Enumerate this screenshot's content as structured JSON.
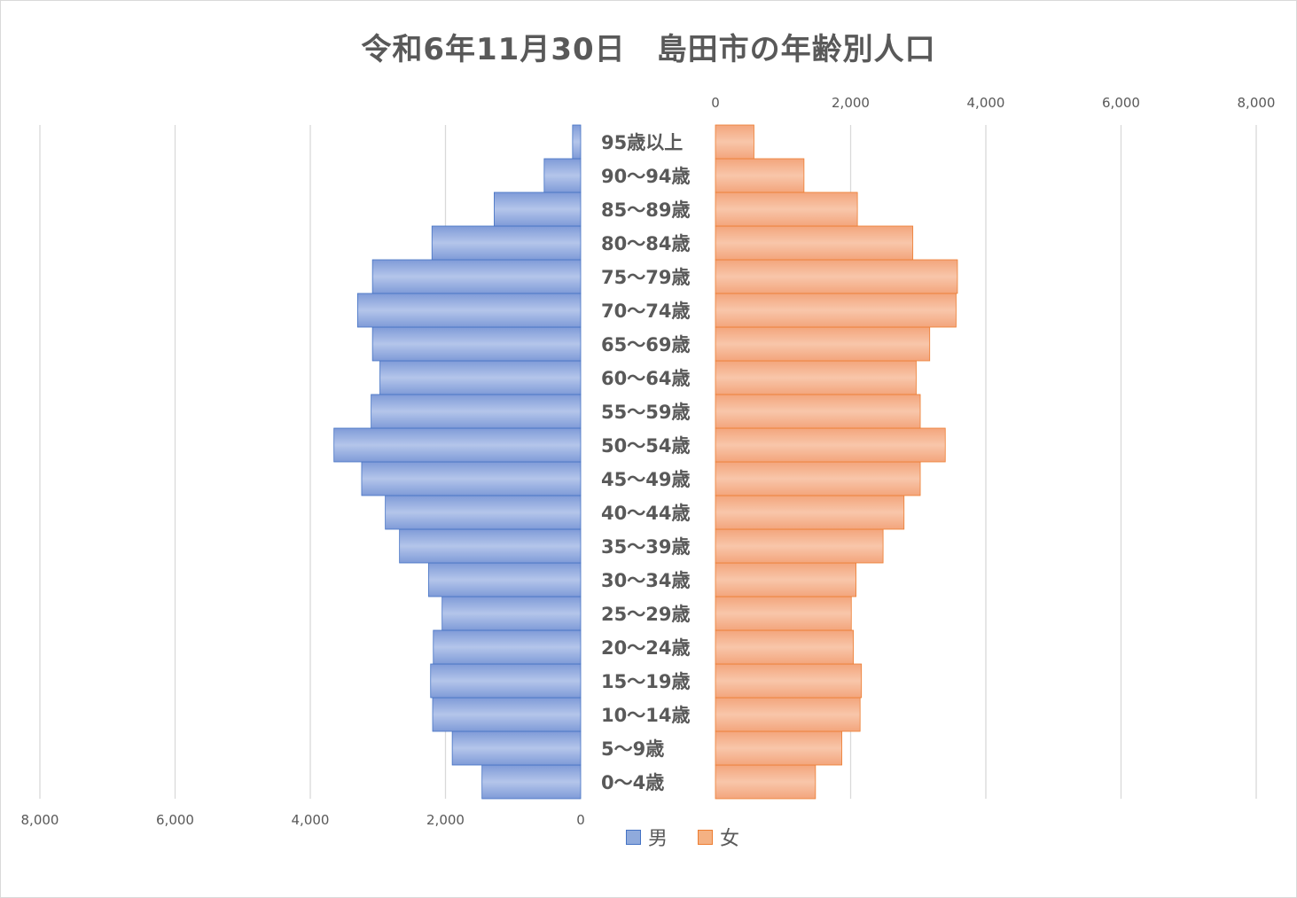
{
  "chart_data": {
    "type": "bar",
    "orientation": "horizontal-population-pyramid",
    "title": "令和6年11月30日　島田市の年齢別人口",
    "categories": [
      "0～4歳",
      "5～9歳",
      "10～14歳",
      "15～19歳",
      "20～24歳",
      "25～29歳",
      "30～34歳",
      "35～39歳",
      "40～44歳",
      "45～49歳",
      "50～54歳",
      "55～59歳",
      "60～64歳",
      "65～69歳",
      "70～74歳",
      "75～79歳",
      "80～84歳",
      "85～89歳",
      "90～94歳",
      "95歳以上"
    ],
    "series": [
      {
        "name": "男",
        "color": "#8faadc",
        "values": [
          1460,
          1900,
          2190,
          2220,
          2180,
          2050,
          2250,
          2680,
          2890,
          3240,
          3650,
          3100,
          2970,
          3080,
          3300,
          3080,
          2200,
          1280,
          540,
          120
        ]
      },
      {
        "name": "女",
        "color": "#f4b183",
        "values": [
          1480,
          1870,
          2140,
          2160,
          2040,
          2010,
          2080,
          2480,
          2790,
          3030,
          3400,
          3030,
          2970,
          3170,
          3560,
          3580,
          2920,
          2100,
          1310,
          570
        ]
      }
    ],
    "xlim": [
      0,
      8000
    ],
    "ticks": [
      0,
      2000,
      4000,
      6000,
      8000
    ],
    "tick_labels": [
      "0",
      "2,000",
      "4,000",
      "6,000",
      "8,000"
    ],
    "grid": true,
    "legend": "bottom"
  }
}
